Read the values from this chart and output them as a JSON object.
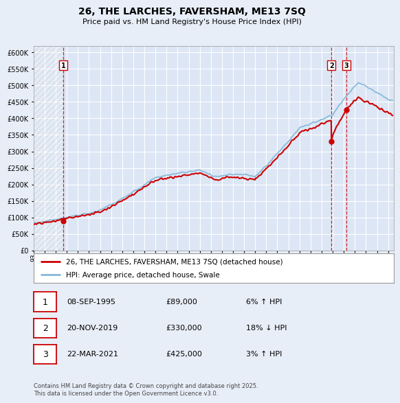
{
  "title": "26, THE LARCHES, FAVERSHAM, ME13 7SQ",
  "subtitle": "Price paid vs. HM Land Registry's House Price Index (HPI)",
  "ylim": [
    0,
    620000
  ],
  "yticks": [
    0,
    50000,
    100000,
    150000,
    200000,
    250000,
    300000,
    350000,
    400000,
    450000,
    500000,
    550000,
    600000
  ],
  "xlim_start": 1993.0,
  "xlim_end": 2025.5,
  "xticks": [
    1993,
    1994,
    1995,
    1996,
    1997,
    1998,
    1999,
    2000,
    2001,
    2002,
    2003,
    2004,
    2005,
    2006,
    2007,
    2008,
    2009,
    2010,
    2011,
    2012,
    2013,
    2014,
    2015,
    2016,
    2017,
    2018,
    2019,
    2020,
    2021,
    2022,
    2023,
    2024,
    2025
  ],
  "bg_color": "#e8eef8",
  "plot_bg_color": "#dce6f5",
  "hatch_region_end": 1995.75,
  "red_line_color": "#cc0000",
  "blue_line_color": "#85b8d8",
  "grid_color": "#ffffff",
  "vline_color": "#cc0000",
  "sale_events": [
    {
      "label": "1",
      "year": 1995.69,
      "price": 89000
    },
    {
      "label": "2",
      "year": 2019.89,
      "price": 330000
    },
    {
      "label": "3",
      "year": 2021.22,
      "price": 425000
    }
  ],
  "legend_entries": [
    {
      "label": "26, THE LARCHES, FAVERSHAM, ME13 7SQ (detached house)",
      "color": "#cc0000"
    },
    {
      "label": "HPI: Average price, detached house, Swale",
      "color": "#85b8d8"
    }
  ],
  "footer": "Contains HM Land Registry data © Crown copyright and database right 2025.\nThis data is licensed under the Open Government Licence v3.0.",
  "table_rows": [
    {
      "num": "1",
      "date": "08-SEP-1995",
      "price": "£89,000",
      "info": "6% ↑ HPI"
    },
    {
      "num": "2",
      "date": "20-NOV-2019",
      "price": "£330,000",
      "info": "18% ↓ HPI"
    },
    {
      "num": "3",
      "date": "22-MAR-2021",
      "price": "£425,000",
      "info": "3% ↑ HPI"
    }
  ]
}
